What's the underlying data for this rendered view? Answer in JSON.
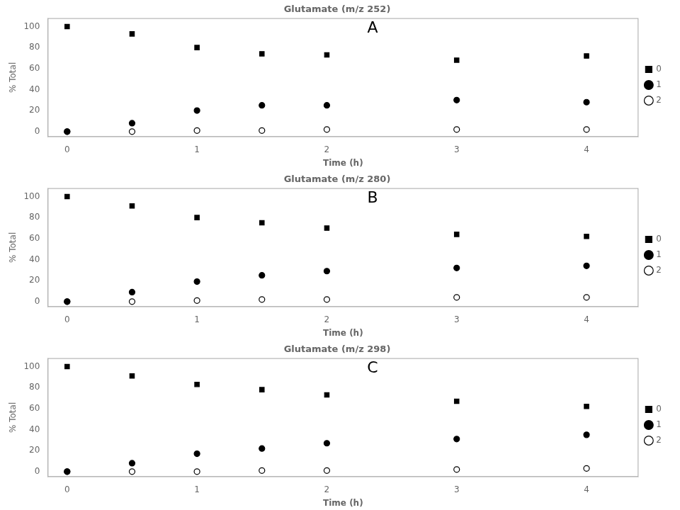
{
  "chart_data": [
    {
      "type": "scatter",
      "title": "Glutamate (m/z 252)",
      "x_label": "Time (h)",
      "y_label": "% Total",
      "annotations": [
        "A"
      ],
      "xlim": [
        -0.15,
        4.4
      ],
      "xticks": [
        0,
        1,
        2,
        3,
        4
      ],
      "ylim": [
        -5,
        108
      ],
      "yticks": [
        0,
        20,
        40,
        60,
        80,
        100
      ],
      "grid": false,
      "legend": "right",
      "series": [
        {
          "name": "0",
          "color": "#000000",
          "marker": "square",
          "x": [
            0,
            0.5,
            1,
            1.5,
            2,
            3,
            4
          ],
          "values": [
            100,
            93,
            80,
            74,
            73,
            68,
            72
          ]
        },
        {
          "name": "1",
          "color": "#000000",
          "marker": "circle",
          "x": [
            0,
            0.5,
            1,
            1.5,
            2,
            3,
            4
          ],
          "values": [
            0,
            8,
            20,
            25,
            25,
            30,
            28
          ]
        },
        {
          "name": "2",
          "color": "#000000",
          "marker": "open_circle",
          "x": [
            0,
            0.5,
            1,
            1.5,
            2,
            3,
            4
          ],
          "values": [
            0,
            0,
            1,
            1,
            2,
            2,
            2
          ]
        }
      ]
    },
    {
      "type": "scatter",
      "title": "Glutamate (m/z 280)",
      "x_label": "Time (h)",
      "y_label": "% Total",
      "annotations": [
        "B"
      ],
      "xlim": [
        -0.15,
        4.4
      ],
      "xticks": [
        0,
        1,
        2,
        3,
        4
      ],
      "ylim": [
        -5,
        108
      ],
      "yticks": [
        0,
        20,
        40,
        60,
        80,
        100
      ],
      "grid": false,
      "legend": "right",
      "series": [
        {
          "name": "0",
          "color": "#000000",
          "marker": "square",
          "x": [
            0,
            0.5,
            1,
            1.5,
            2,
            3,
            4
          ],
          "values": [
            100,
            91,
            80,
            75,
            70,
            64,
            62
          ]
        },
        {
          "name": "1",
          "color": "#000000",
          "marker": "circle",
          "x": [
            0,
            0.5,
            1,
            1.5,
            2,
            3,
            4
          ],
          "values": [
            0,
            9,
            19,
            25,
            29,
            32,
            34
          ]
        },
        {
          "name": "2",
          "color": "#000000",
          "marker": "open_circle",
          "x": [
            0,
            0.5,
            1,
            1.5,
            2,
            3,
            4
          ],
          "values": [
            0,
            0,
            1,
            2,
            2,
            4,
            4
          ]
        }
      ]
    },
    {
      "type": "scatter",
      "title": "Glutamate (m/z 298)",
      "x_label": "Time (h)",
      "y_label": "% Total",
      "annotations": [
        "C"
      ],
      "xlim": [
        -0.15,
        4.4
      ],
      "xticks": [
        0,
        1,
        2,
        3,
        4
      ],
      "ylim": [
        -5,
        108
      ],
      "yticks": [
        0,
        20,
        40,
        60,
        80,
        100
      ],
      "grid": false,
      "legend": "right",
      "series": [
        {
          "name": "0",
          "color": "#000000",
          "marker": "square",
          "x": [
            0,
            0.5,
            1,
            1.5,
            2,
            3,
            4
          ],
          "values": [
            100,
            91,
            83,
            78,
            73,
            67,
            62
          ]
        },
        {
          "name": "1",
          "color": "#000000",
          "marker": "circle",
          "x": [
            0,
            0.5,
            1,
            1.5,
            2,
            3,
            4
          ],
          "values": [
            0,
            8,
            17,
            22,
            27,
            31,
            35
          ]
        },
        {
          "name": "2",
          "color": "#000000",
          "marker": "open_circle",
          "x": [
            0,
            0.5,
            1,
            1.5,
            2,
            3,
            4
          ],
          "values": [
            0,
            0,
            0,
            1,
            1,
            2,
            3
          ]
        }
      ]
    }
  ]
}
